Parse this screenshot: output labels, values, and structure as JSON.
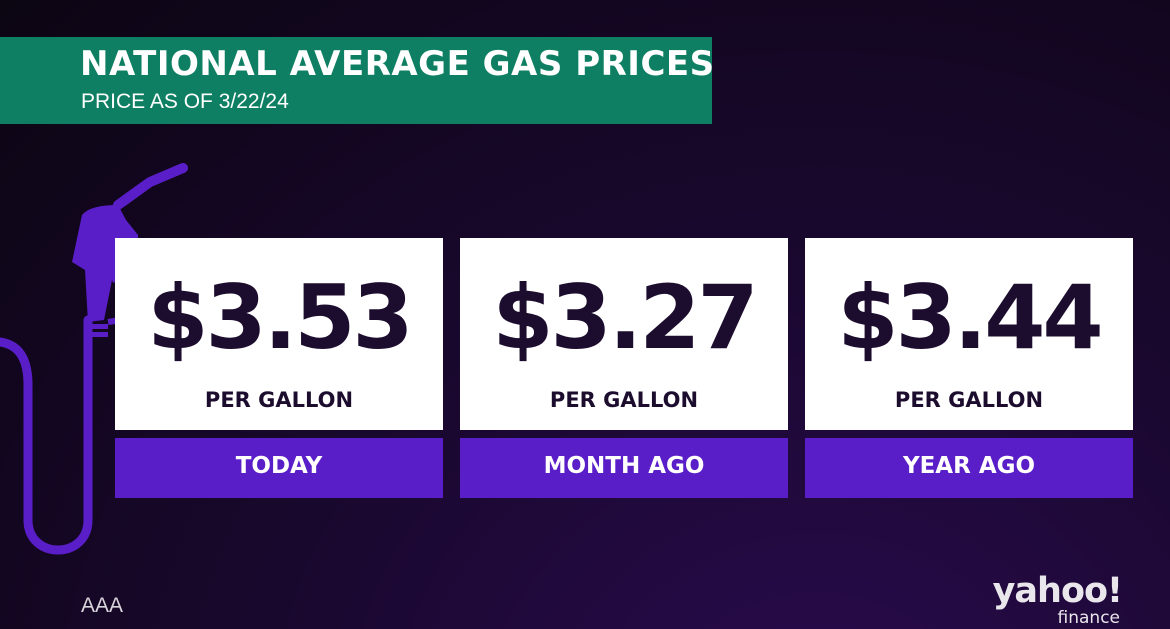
{
  "header": {
    "title": "NATIONAL AVERAGE GAS PRICES",
    "subtitle": "PRICE AS OF 3/22/24"
  },
  "cards": [
    {
      "price": "$3.53",
      "unit": "PER GALLON",
      "label": "TODAY"
    },
    {
      "price": "$3.27",
      "unit": "PER GALLON",
      "label": "MONTH AGO"
    },
    {
      "price": "$3.44",
      "unit": "PER GALLON",
      "label": "YEAR AGO"
    }
  ],
  "footer": {
    "source": "AAA",
    "logo_main": "yahoo!",
    "logo_sub": "finance"
  },
  "colors": {
    "banner": "#0e7f62",
    "accent_purple": "#5a1ec8",
    "card_text": "#1c0d2e"
  },
  "icons": {
    "pump": "gas-pump-nozzle-icon"
  }
}
